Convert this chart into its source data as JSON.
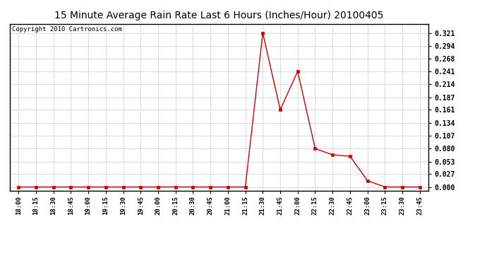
{
  "title": "15 Minute Average Rain Rate Last 6 Hours (Inches/Hour) 20100405",
  "copyright": "Copyright 2010 Cartronics.com",
  "background_color": "#ffffff",
  "plot_bg_color": "#ffffff",
  "line_color": "#cc0000",
  "marker_color": "#cc0000",
  "grid_color": "#bbbbbb",
  "x_labels": [
    "18:00",
    "18:15",
    "18:30",
    "18:45",
    "19:00",
    "19:15",
    "19:30",
    "19:45",
    "20:00",
    "20:15",
    "20:30",
    "20:45",
    "21:00",
    "21:15",
    "21:30",
    "21:45",
    "22:00",
    "22:15",
    "22:30",
    "22:45",
    "23:00",
    "23:15",
    "23:30",
    "23:45"
  ],
  "y_values": [
    0.0,
    0.0,
    0.0,
    0.0,
    0.0,
    0.0,
    0.0,
    0.0,
    0.0,
    0.0,
    0.0,
    0.0,
    0.0,
    0.0,
    0.321,
    0.161,
    0.241,
    0.08,
    0.067,
    0.064,
    0.013,
    0.0,
    0.0,
    0.0
  ],
  "yticks": [
    0.0,
    0.027,
    0.053,
    0.08,
    0.107,
    0.134,
    0.161,
    0.187,
    0.214,
    0.241,
    0.268,
    0.294,
    0.321
  ],
  "ylim": [
    -0.008,
    0.34
  ],
  "title_fontsize": 10,
  "copyright_fontsize": 6.5,
  "tick_fontsize": 6.5,
  "ytick_fontsize": 7
}
